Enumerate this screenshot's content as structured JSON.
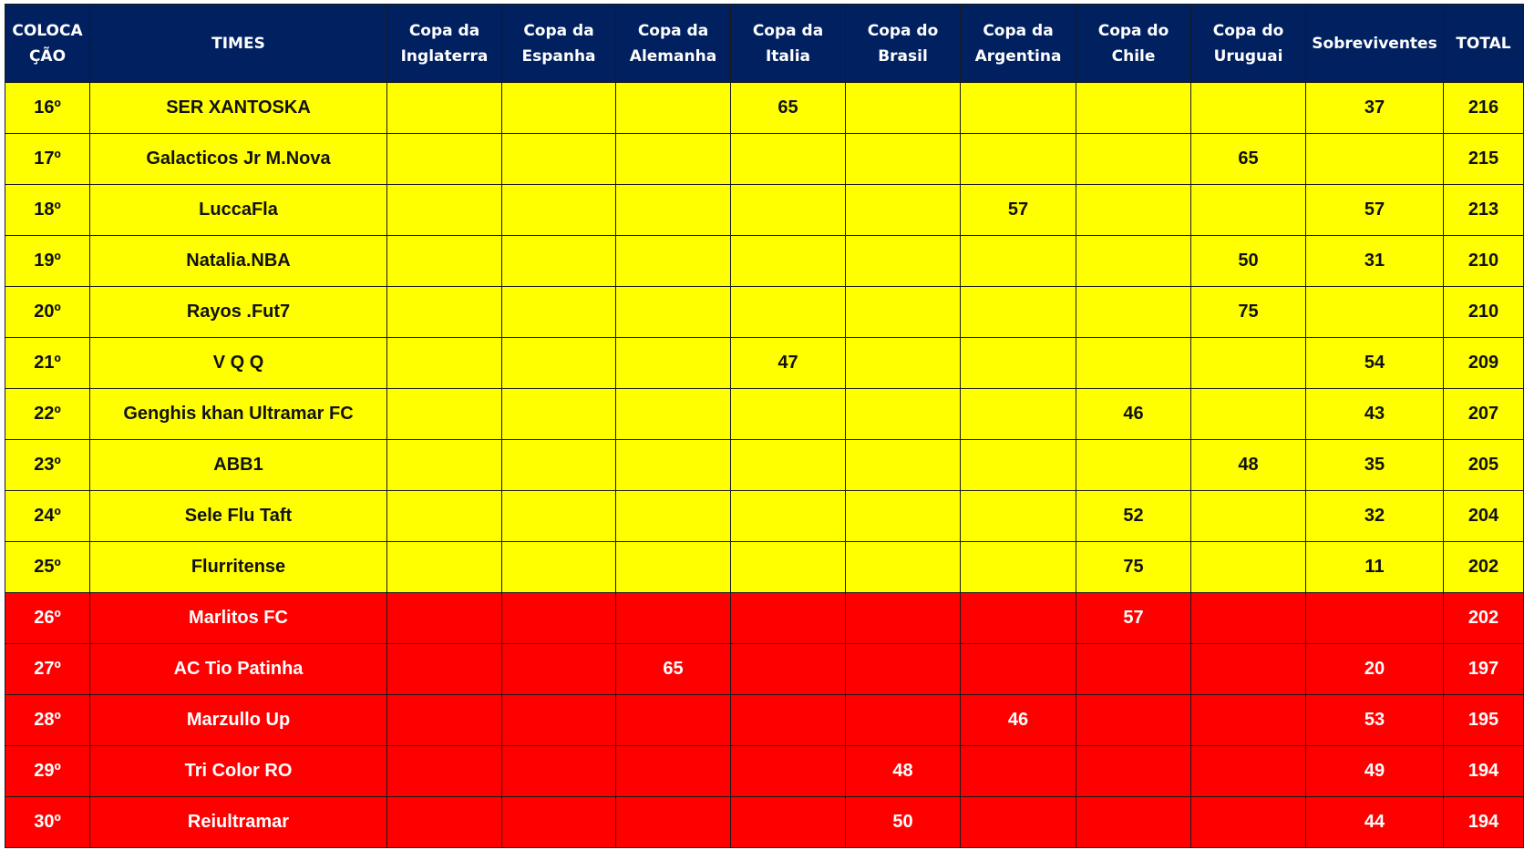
{
  "colors": {
    "header": "#002060",
    "zone_yellow": "#ffff00",
    "zone_red": "#ff0000"
  },
  "headers": [
    "COLOCA ÇÃO",
    "TIMES",
    "Copa da Inglaterra",
    "Copa da Espanha",
    "Copa da Alemanha",
    "Copa da Italia",
    "Copa do Brasil",
    "Copa da Argentina",
    "Copa do Chile",
    "Copa do Uruguai",
    "Sobreviventes",
    "TOTAL"
  ],
  "rows": [
    {
      "zone": "yellow",
      "cells": [
        "16º",
        "SER XANTOSKA",
        "",
        "",
        "",
        "65",
        "",
        "",
        "",
        "",
        "37",
        "216"
      ]
    },
    {
      "zone": "yellow",
      "cells": [
        "17º",
        "Galacticos Jr M.Nova",
        "",
        "",
        "",
        "",
        "",
        "",
        "",
        "65",
        "",
        "215"
      ]
    },
    {
      "zone": "yellow",
      "cells": [
        "18º",
        "LuccaFla",
        "",
        "",
        "",
        "",
        "",
        "57",
        "",
        "",
        "57",
        "213"
      ]
    },
    {
      "zone": "yellow",
      "cells": [
        "19º",
        "Natalia.NBA",
        "",
        "",
        "",
        "",
        "",
        "",
        "",
        "50",
        "31",
        "210"
      ]
    },
    {
      "zone": "yellow",
      "cells": [
        "20º",
        "Rayos .Fut7",
        "",
        "",
        "",
        "",
        "",
        "",
        "",
        "75",
        "",
        "210"
      ]
    },
    {
      "zone": "yellow",
      "cells": [
        "21º",
        "V Q Q",
        "",
        "",
        "",
        "47",
        "",
        "",
        "",
        "",
        "54",
        "209"
      ]
    },
    {
      "zone": "yellow",
      "cells": [
        "22º",
        "Genghis khan Ultramar FC",
        "",
        "",
        "",
        "",
        "",
        "",
        "46",
        "",
        "43",
        "207"
      ]
    },
    {
      "zone": "yellow",
      "cells": [
        "23º",
        "ABB1",
        "",
        "",
        "",
        "",
        "",
        "",
        "",
        "48",
        "35",
        "205"
      ]
    },
    {
      "zone": "yellow",
      "cells": [
        "24º",
        "Sele Flu Taft",
        "",
        "",
        "",
        "",
        "",
        "",
        "52",
        "",
        "32",
        "204"
      ]
    },
    {
      "zone": "yellow",
      "cells": [
        "25º",
        "Flurritense",
        "",
        "",
        "",
        "",
        "",
        "",
        "75",
        "",
        "11",
        "202"
      ]
    },
    {
      "zone": "red",
      "cells": [
        "26º",
        "Marlitos FC",
        "",
        "",
        "",
        "",
        "",
        "",
        "57",
        "",
        "",
        "202"
      ]
    },
    {
      "zone": "red",
      "cells": [
        "27º",
        "AC Tio Patinha",
        "",
        "",
        "65",
        "",
        "",
        "",
        "",
        "",
        "20",
        "197"
      ]
    },
    {
      "zone": "red",
      "cells": [
        "28º",
        "Marzullo Up",
        "",
        "",
        "",
        "",
        "",
        "46",
        "",
        "",
        "53",
        "195"
      ]
    },
    {
      "zone": "red",
      "cells": [
        "29º",
        "Tri Color RO",
        "",
        "",
        "",
        "",
        "48",
        "",
        "",
        "",
        "49",
        "194"
      ]
    },
    {
      "zone": "red",
      "cells": [
        "30º",
        "Reiultramar",
        "",
        "",
        "",
        "",
        "50",
        "",
        "",
        "",
        "44",
        "194"
      ]
    }
  ]
}
